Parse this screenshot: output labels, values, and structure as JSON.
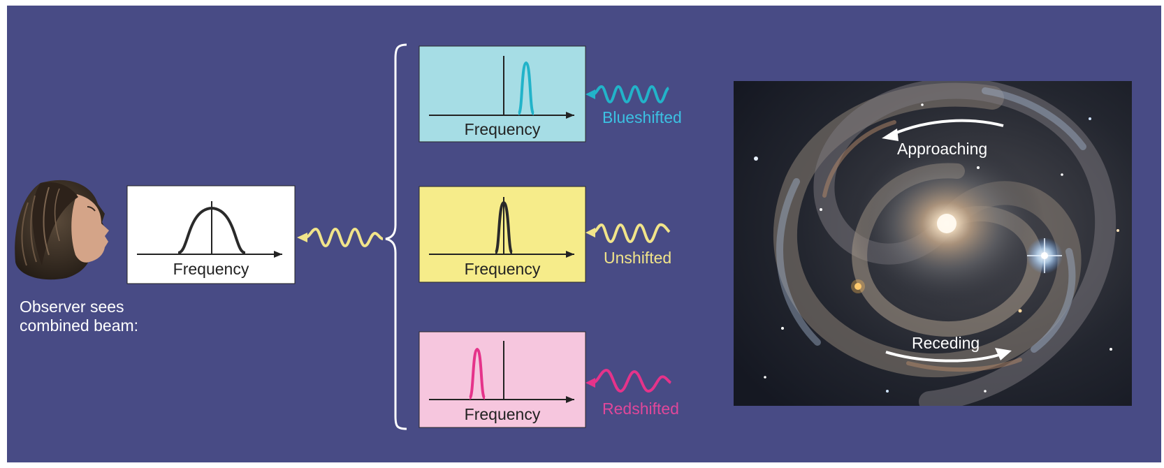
{
  "observer": {
    "caption_line1": "Observer sees",
    "caption_line2": "combined beam:"
  },
  "combined": {
    "axis_label": "Frequency"
  },
  "spectra": [
    {
      "axis_label": "Frequency",
      "shift_label": "Blueshifted",
      "box_color": "#a6dde5",
      "line_color": "#22b3c9"
    },
    {
      "axis_label": "Frequency",
      "shift_label": "Unshifted",
      "box_color": "#f6ec8a",
      "line_color": "#2a2a2a"
    },
    {
      "axis_label": "Frequency",
      "shift_label": "Redshifted",
      "box_color": "#f6c6de",
      "line_color": "#e5338a"
    }
  ],
  "galaxy": {
    "approaching_label": "Approaching",
    "receding_label": "Receding"
  },
  "colors": {
    "background": "#484b85",
    "blue_label": "#3cc1e2",
    "yellow_label": "#f1e48a",
    "pink_label": "#e0479a",
    "wave_yellow": "#f1e48a",
    "wave_blue": "#22b3c9",
    "wave_pink": "#e5338a"
  }
}
